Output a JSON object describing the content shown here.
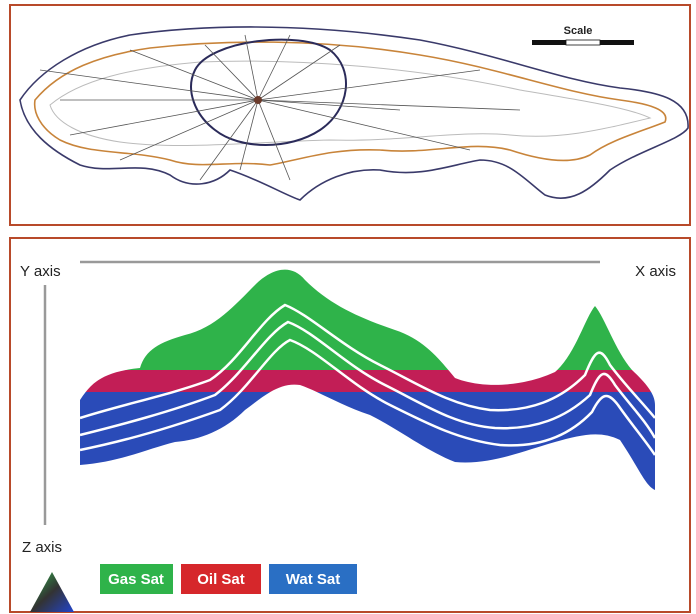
{
  "map": {
    "scale_label": "Scale"
  },
  "section": {
    "y_axis": "Y axis",
    "x_axis": "X axis",
    "z_axis": "Z axis",
    "legend": [
      "Gas Sat",
      "Oil Sat",
      "Wat Sat"
    ]
  }
}
